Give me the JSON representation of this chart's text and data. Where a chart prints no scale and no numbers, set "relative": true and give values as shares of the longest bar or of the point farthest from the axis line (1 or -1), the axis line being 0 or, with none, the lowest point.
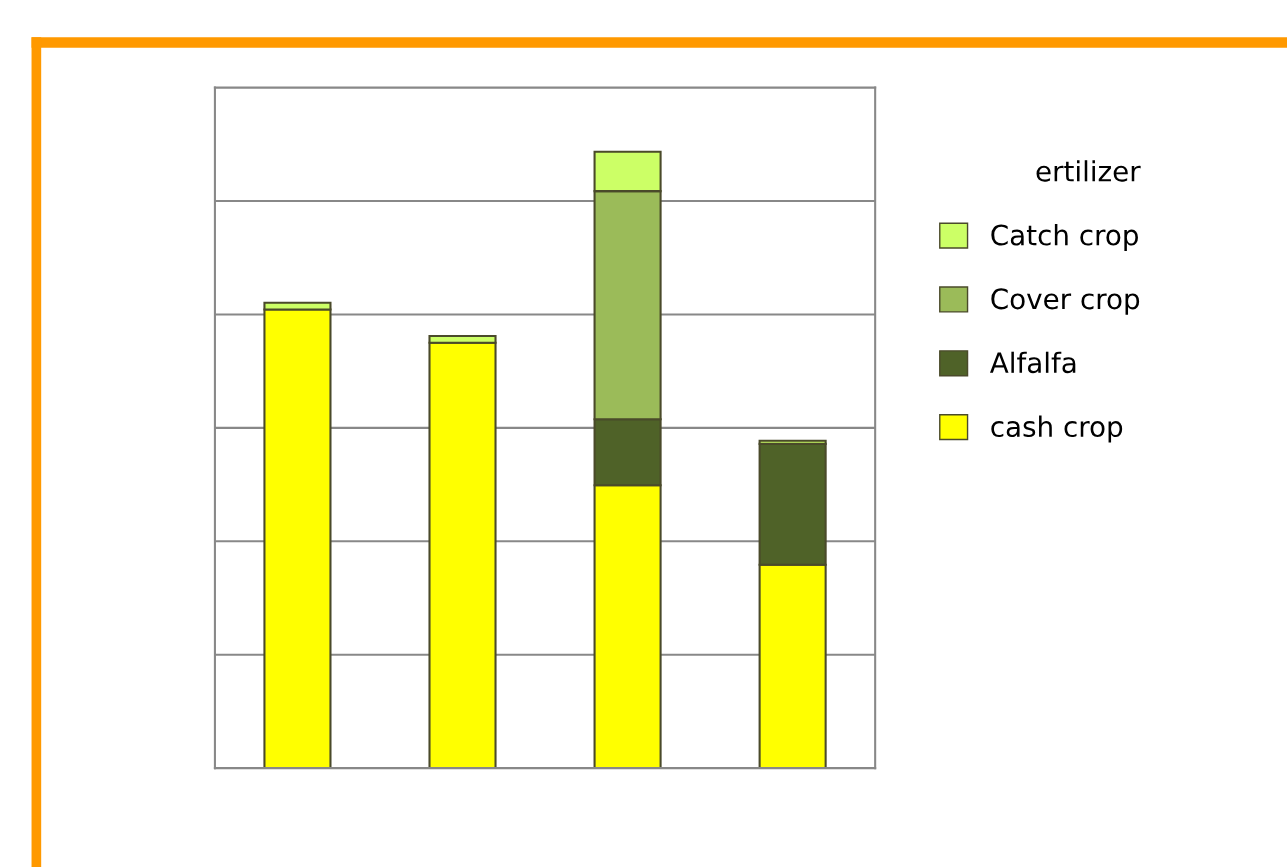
{
  "chart_data": {
    "type": "bar",
    "stacked": true,
    "relative": true,
    "categories": [
      null,
      null,
      null,
      null
    ],
    "series": [
      {
        "name": "cash crop",
        "color": "#ffff00",
        "values": [
          0.744,
          0.69,
          0.459,
          0.33
        ]
      },
      {
        "name": "Alfalfa",
        "color": "#4f6228",
        "values": [
          null,
          null,
          0.107,
          0.196
        ]
      },
      {
        "name": "Cover crop",
        "color": "#9bbb59",
        "values": [
          null,
          null,
          0.37,
          null
        ]
      },
      {
        "name": "Catch crop",
        "color": "#ccff66",
        "values": [
          0.011,
          0.011,
          0.064,
          0.005
        ]
      }
    ],
    "legend_title": "ertilizer",
    "legend": "right",
    "grid": "y"
  }
}
